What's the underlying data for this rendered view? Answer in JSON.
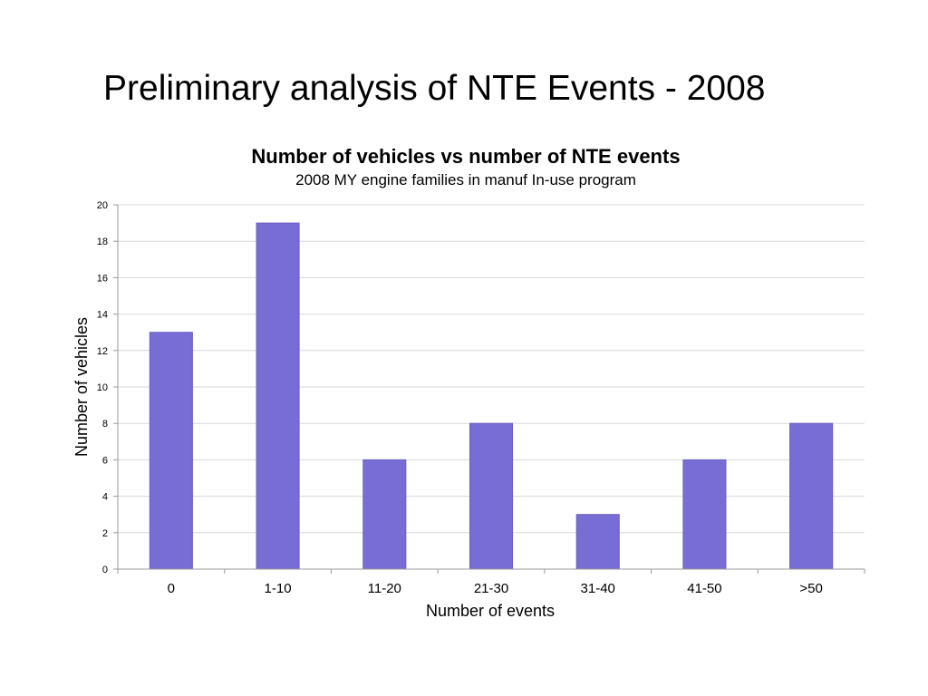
{
  "slide": {
    "title": "Preliminary analysis of NTE Events - 2008"
  },
  "chart_data": {
    "type": "bar",
    "title": "Number of vehicles vs number of NTE events",
    "subtitle": "2008 MY engine families in manuf In-use program",
    "xlabel": "Number of events",
    "ylabel": "Number of vehicles",
    "categories": [
      "0",
      "1-10",
      "11-20",
      "21-30",
      "31-40",
      "41-50",
      ">50"
    ],
    "values": [
      13,
      19,
      6,
      8,
      3,
      6,
      8
    ],
    "ylim": [
      0,
      20
    ],
    "yticks": [
      "0",
      "2",
      "4",
      "6",
      "8",
      "10",
      "12",
      "14",
      "16",
      "18",
      "20"
    ],
    "grid": true,
    "legend": "none",
    "bar_color": "#786CD5",
    "bar_edge_color": "#6A5FC4",
    "grid_color": "#D9D9D9",
    "axis_color": "#9A9A9A"
  }
}
